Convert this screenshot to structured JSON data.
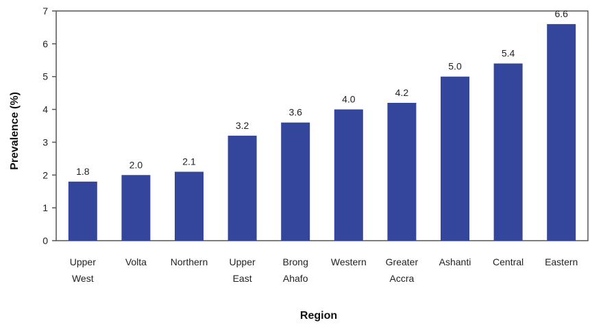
{
  "chart_data": {
    "type": "bar",
    "title": "",
    "xlabel": "Region",
    "ylabel": "Prevalence (%)",
    "ylim": [
      0,
      7
    ],
    "yticks": [
      0,
      1,
      2,
      3,
      4,
      5,
      6,
      7
    ],
    "grid": false,
    "categories": [
      [
        "Upper",
        "West"
      ],
      [
        "Volta"
      ],
      [
        "Northern"
      ],
      [
        "Upper",
        "East"
      ],
      [
        "Brong",
        "Ahafo"
      ],
      [
        "Western"
      ],
      [
        "Greater",
        "Accra"
      ],
      [
        "Ashanti"
      ],
      [
        "Central"
      ],
      [
        "Eastern"
      ]
    ],
    "values": [
      1.8,
      2.0,
      2.1,
      3.2,
      3.6,
      4.0,
      4.2,
      5.0,
      5.4,
      6.6
    ],
    "value_labels": [
      "1.8",
      "2.0",
      "2.1",
      "3.2",
      "3.6",
      "4.0",
      "4.2",
      "5.0",
      "5.4",
      "6.6"
    ],
    "bar_color": "#34469c"
  }
}
